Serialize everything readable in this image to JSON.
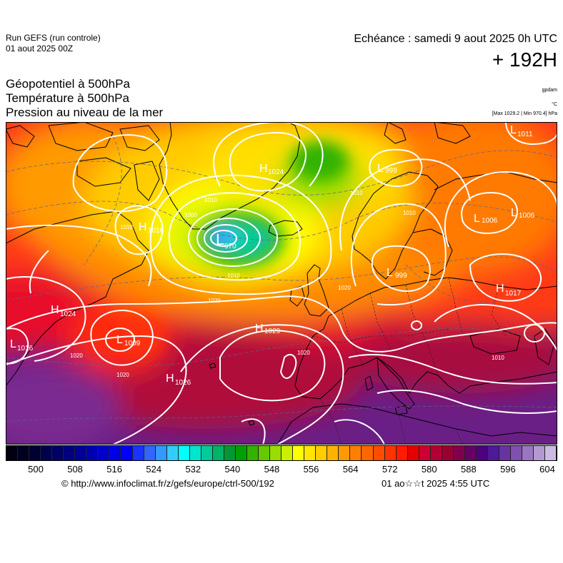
{
  "header": {
    "run_title": "Run GEFS (run controle)",
    "run_date": "01 aout 2025 00Z",
    "echeance": "Echéance : samedi 9 aout 2025 0h UTC",
    "lead_time": "+ 192H"
  },
  "params": {
    "p1": "Géopotentiel à 500hPa",
    "p2": "Température à 500hPa",
    "p3": "Pression au niveau de la mer",
    "unit_geopot": "gpdam",
    "unit_temp": "°C",
    "maxmin": "[Max 1029.2 | Min 970.4] hPa"
  },
  "pressure_centers": [
    {
      "type": "H",
      "value": "1024"
    },
    {
      "type": "L",
      "value": "970"
    },
    {
      "type": "L",
      "value": "999"
    },
    {
      "type": "L",
      "value": "1011"
    },
    {
      "type": "H",
      "value": "1016"
    },
    {
      "type": "L",
      "value": "1006"
    },
    {
      "type": "L",
      "value": "1006"
    },
    {
      "type": "L",
      "value": "999"
    },
    {
      "type": "H",
      "value": "1017"
    },
    {
      "type": "H",
      "value": "1024"
    },
    {
      "type": "L",
      "value": "1009"
    },
    {
      "type": "L",
      "value": "1016"
    },
    {
      "type": "H",
      "value": "1029"
    },
    {
      "type": "H",
      "value": "1026"
    }
  ],
  "isobar_labels": [
    "1010",
    "1010",
    "1000",
    "1010",
    "1020",
    "1020",
    "1010",
    "1020",
    "1010",
    "1020",
    "1020",
    "1010"
  ],
  "colorbar": {
    "colors": [
      "#000010",
      "#00001f",
      "#000033",
      "#00004d",
      "#000066",
      "#00007f",
      "#000099",
      "#0000b3",
      "#0000cc",
      "#0000e6",
      "#0000ff",
      "#1a33ff",
      "#3366ff",
      "#3399ff",
      "#33ccff",
      "#00ffff",
      "#00e6cc",
      "#00cc99",
      "#00b366",
      "#009933",
      "#00a000",
      "#33b300",
      "#66c800",
      "#99dd00",
      "#ccee00",
      "#ffff00",
      "#ffe600",
      "#ffcc00",
      "#ffb300",
      "#ff9900",
      "#ff8000",
      "#ff6600",
      "#ff4d00",
      "#ff3300",
      "#ff1a00",
      "#e60000",
      "#cc0033",
      "#b30033",
      "#990033",
      "#80004d",
      "#660066",
      "#4d0080",
      "#4d1a99",
      "#6633a0",
      "#8050b0",
      "#9977c0",
      "#b399d0",
      "#ccbbe0"
    ],
    "ticks": [
      "500",
      "508",
      "516",
      "524",
      "532",
      "540",
      "548",
      "556",
      "564",
      "572",
      "580",
      "588",
      "596",
      "604"
    ]
  },
  "footer": {
    "credit": "© http://www.infoclimat.fr/z/gefs/europe/ctrl-500/192",
    "generated": "01 ao☆☆t 2025  4:55 UTC"
  }
}
